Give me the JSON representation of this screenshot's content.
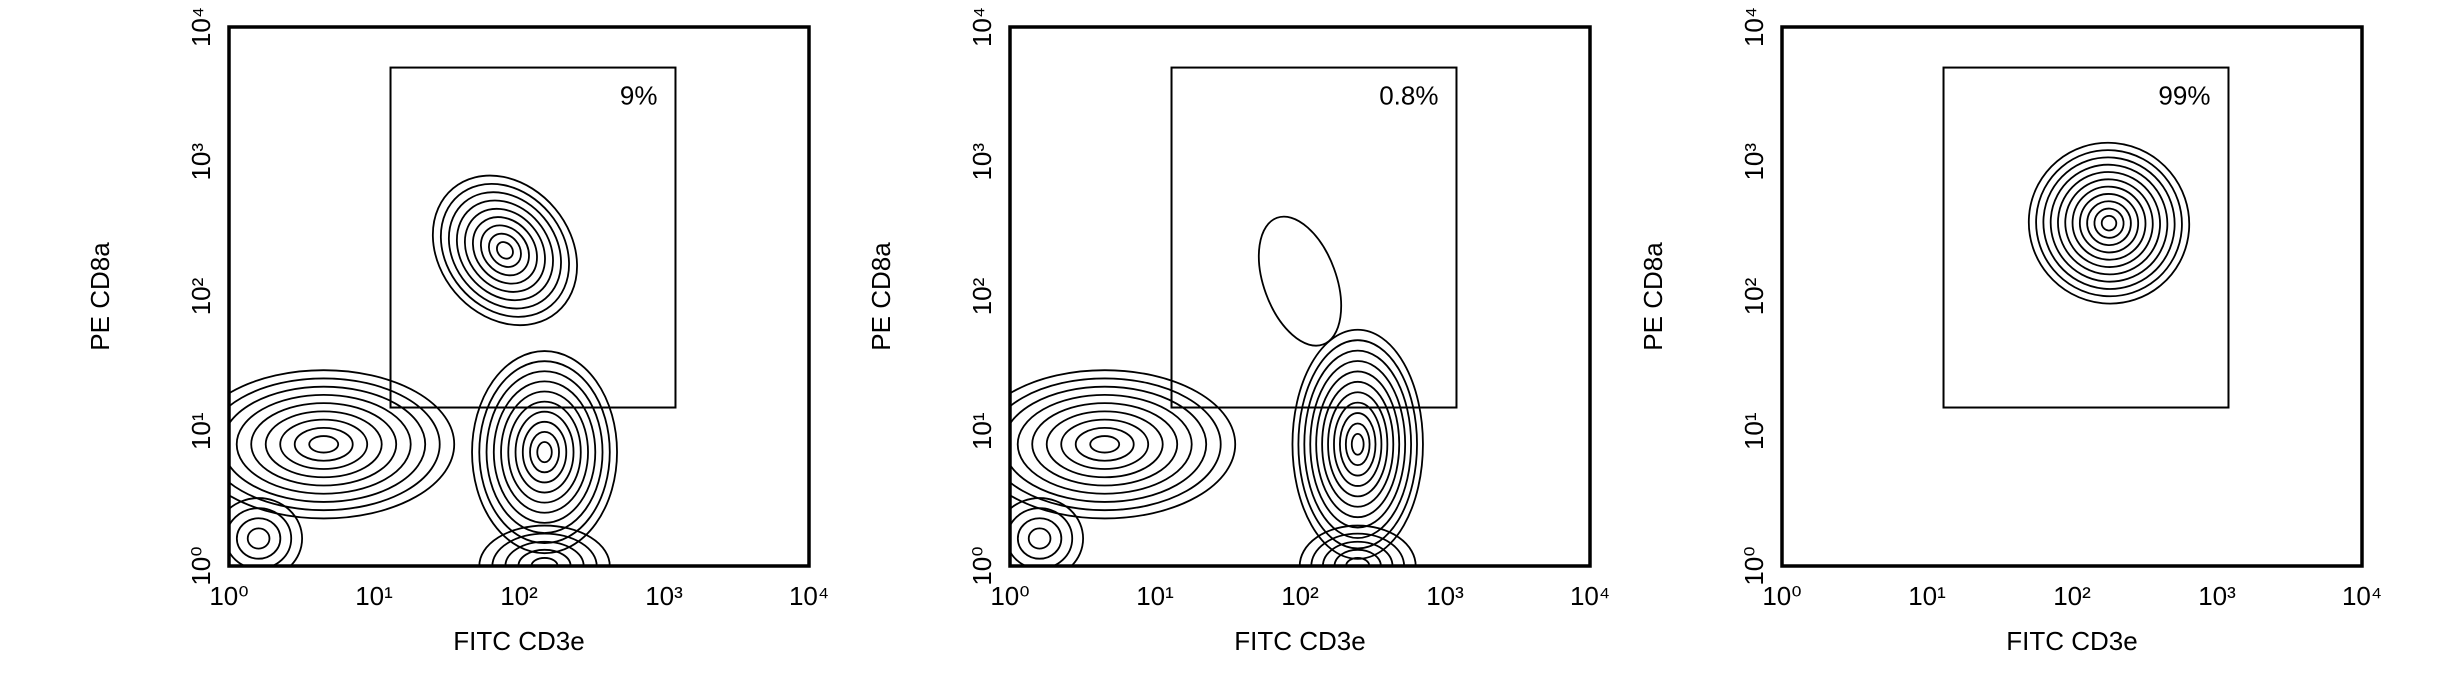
{
  "chart_data": [
    {
      "type": "contour",
      "x_label": "FITC CD3e",
      "y_label": "PE CD8a",
      "log_scale": true,
      "xlim": [
        1,
        10000
      ],
      "ylim": [
        1,
        10000
      ],
      "xticks": [
        {
          "value": 1,
          "label": "10⁰"
        },
        {
          "value": 10,
          "label": "10¹"
        },
        {
          "value": 100,
          "label": "10²"
        },
        {
          "value": 1000,
          "label": "10³"
        },
        {
          "value": 10000,
          "label": "10⁴"
        }
      ],
      "yticks": [
        {
          "value": 1,
          "label": "10⁰"
        },
        {
          "value": 10,
          "label": "10¹"
        },
        {
          "value": 100,
          "label": "10²"
        },
        {
          "value": 1000,
          "label": "10³"
        },
        {
          "value": 10000,
          "label": "10⁴"
        }
      ],
      "gate": {
        "x": [
          13,
          1200
        ],
        "y": [
          15,
          5000
        ],
        "value": 9,
        "value_label": "9%"
      },
      "populations": [
        {
          "x": 80,
          "y": 220,
          "sx": 0.45,
          "sy": 0.6,
          "levels": 9,
          "tilt": -40
        },
        {
          "x": 4.5,
          "y": 8,
          "sx": 0.9,
          "sy": 0.55,
          "levels": 9,
          "tilt": 0
        },
        {
          "x": 1.6,
          "y": 1.6,
          "sx": 0.3,
          "sy": 0.3,
          "levels": 4,
          "tilt": 0
        },
        {
          "x": 150,
          "y": 7,
          "sx": 0.5,
          "sy": 0.75,
          "levels": 10,
          "tilt": 0
        },
        {
          "x": 150,
          "y": 1,
          "sx": 0.45,
          "sy": 0.3,
          "levels": 5,
          "tilt": 0
        }
      ]
    },
    {
      "type": "contour",
      "x_label": "FITC CD3e",
      "y_label": "PE CD8a",
      "log_scale": true,
      "xlim": [
        1,
        10000
      ],
      "ylim": [
        1,
        10000
      ],
      "xticks": [
        {
          "value": 1,
          "label": "10⁰"
        },
        {
          "value": 10,
          "label": "10¹"
        },
        {
          "value": 100,
          "label": "10²"
        },
        {
          "value": 1000,
          "label": "10³"
        },
        {
          "value": 10000,
          "label": "10⁴"
        }
      ],
      "yticks": [
        {
          "value": 1,
          "label": "10⁰"
        },
        {
          "value": 10,
          "label": "10¹"
        },
        {
          "value": 100,
          "label": "10²"
        },
        {
          "value": 1000,
          "label": "10³"
        },
        {
          "value": 10000,
          "label": "10⁴"
        }
      ],
      "gate": {
        "x": [
          13,
          1200
        ],
        "y": [
          15,
          5000
        ],
        "value": 0.8,
        "value_label": "0.8%"
      },
      "populations": [
        {
          "x": 100,
          "y": 130,
          "sx": 0.25,
          "sy": 0.5,
          "levels": 1,
          "tilt": -20
        },
        {
          "x": 4.5,
          "y": 8,
          "sx": 0.9,
          "sy": 0.55,
          "levels": 9,
          "tilt": 0
        },
        {
          "x": 1.6,
          "y": 1.6,
          "sx": 0.3,
          "sy": 0.3,
          "levels": 4,
          "tilt": 0
        },
        {
          "x": 250,
          "y": 8,
          "sx": 0.45,
          "sy": 0.85,
          "levels": 11,
          "tilt": 0
        },
        {
          "x": 250,
          "y": 1,
          "sx": 0.4,
          "sy": 0.3,
          "levels": 5,
          "tilt": 0
        }
      ]
    },
    {
      "type": "contour",
      "x_label": "FITC CD3e",
      "y_label": "PE CD8a",
      "log_scale": true,
      "xlim": [
        1,
        10000
      ],
      "ylim": [
        1,
        10000
      ],
      "xticks": [
        {
          "value": 1,
          "label": "10⁰"
        },
        {
          "value": 10,
          "label": "10¹"
        },
        {
          "value": 100,
          "label": "10²"
        },
        {
          "value": 1000,
          "label": "10³"
        },
        {
          "value": 10000,
          "label": "10⁴"
        }
      ],
      "yticks": [
        {
          "value": 1,
          "label": "10⁰"
        },
        {
          "value": 10,
          "label": "10¹"
        },
        {
          "value": 100,
          "label": "10²"
        },
        {
          "value": 1000,
          "label": "10³"
        },
        {
          "value": 10000,
          "label": "10⁴"
        }
      ],
      "gate": {
        "x": [
          13,
          1200
        ],
        "y": [
          15,
          5000
        ],
        "value": 99,
        "value_label": "99%"
      },
      "populations": [
        {
          "x": 180,
          "y": 350,
          "sx": 0.55,
          "sy": 0.6,
          "levels": 11,
          "tilt": -40
        }
      ]
    }
  ]
}
